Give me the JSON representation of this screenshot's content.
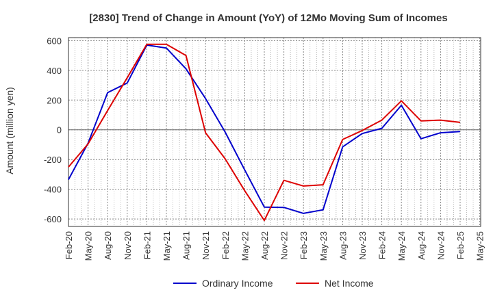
{
  "chart_data": {
    "type": "line",
    "title": "[2830]  Trend of Change in Amount (YoY) of 12Mo Moving Sum of Incomes",
    "xlabel": "",
    "ylabel": "Amount (million yen)",
    "ylim": [
      -650,
      620
    ],
    "yticks": [
      -600,
      -400,
      -200,
      0,
      200,
      400,
      600
    ],
    "grid": true,
    "legend_position": "bottom-center",
    "categories": [
      "Feb-20",
      "May-20",
      "Aug-20",
      "Nov-20",
      "Feb-21",
      "May-21",
      "Aug-21",
      "Nov-21",
      "Feb-22",
      "May-22",
      "Aug-22",
      "Nov-22",
      "Feb-23",
      "May-23",
      "Aug-23",
      "Nov-23",
      "Feb-24",
      "May-24",
      "Aug-24",
      "Nov-24",
      "Feb-25",
      "May-25"
    ],
    "series": [
      {
        "name": "Ordinary Income",
        "color": "#0000cc",
        "values": [
          -335,
          -90,
          250,
          315,
          570,
          550,
          410,
          210,
          -15,
          -270,
          -520,
          -522,
          -562,
          -538,
          -115,
          -25,
          10,
          165,
          -60,
          -20,
          -12,
          null
        ]
      },
      {
        "name": "Net Income",
        "color": "#dd0000",
        "values": [
          -250,
          -95,
          130,
          350,
          575,
          575,
          500,
          -20,
          -195,
          -410,
          -610,
          -340,
          -378,
          -370,
          -65,
          -5,
          65,
          195,
          60,
          65,
          50,
          null
        ]
      }
    ]
  }
}
